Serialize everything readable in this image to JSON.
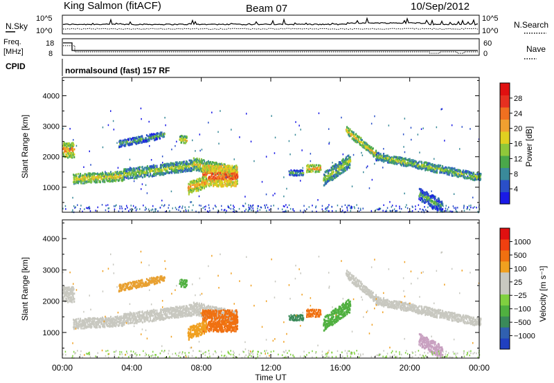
{
  "header": {
    "station": "King Salmon (fitACF)",
    "beam": "Beam 07",
    "date": "10/Sep/2012"
  },
  "panels": {
    "nsky": {
      "left_label": "N.Sky",
      "right_label": "N.Search",
      "tick_high": "10^5",
      "tick_low": "10^0"
    },
    "freq": {
      "left_label_line1": "Freq.",
      "left_label_line2": "[MHz]",
      "right_label": "Nave",
      "left_ticks": [
        "18",
        "8"
      ],
      "right_ticks": [
        "60",
        "0"
      ]
    },
    "cpid": {
      "label": "CPID",
      "program": "normalsound (fast) 157 RF"
    }
  },
  "chart_data": [
    {
      "type": "heatmap",
      "name": "power",
      "ylabel": "Slant Range [km]",
      "ylim": [
        180,
        4600
      ],
      "yticks": [
        "1000",
        "2000",
        "3000",
        "4000"
      ],
      "colorbar_label": "Power [dB]",
      "colorbar_ticks": [
        "4",
        "8",
        "12",
        "16",
        "20",
        "24",
        "28"
      ],
      "colorbar_colors": [
        "#1a1ae6",
        "#2a4fc8",
        "#3a8a9a",
        "#4aa84a",
        "#8fc83a",
        "#e0d020",
        "#f0a030",
        "#f07020",
        "#e63020",
        "#e01010"
      ],
      "colorbar_range": [
        0,
        30
      ]
    },
    {
      "type": "heatmap",
      "name": "velocity",
      "ylabel": "Slant Range [km]",
      "ylim": [
        180,
        4600
      ],
      "yticks": [
        "1000",
        "2000",
        "3000",
        "4000"
      ],
      "colorbar_label": "Velocity [m s⁻¹]",
      "colorbar_ticks": [
        "1000",
        "500",
        "100",
        "25",
        "−25",
        "−100",
        "−500",
        "−1000"
      ],
      "colorbar_colors": [
        "#2040c0",
        "#3060b0",
        "#3a8a5a",
        "#50b040",
        "#80d040",
        "#c8c8c0",
        "#c8c8c0",
        "#f0a020",
        "#f07010",
        "#f04010",
        "#e01010"
      ]
    }
  ],
  "time_axis": {
    "xlabel": "Time UT",
    "ticks": [
      "00:00",
      "04:00",
      "08:00",
      "12:00",
      "16:00",
      "20:00",
      "00:00"
    ],
    "range_hours": [
      0,
      24
    ]
  }
}
